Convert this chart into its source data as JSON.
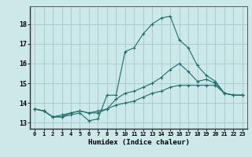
{
  "xlabel": "Humidex (Indice chaleur)",
  "bg_color": "#cce8e8",
  "line_color": "#1a6e6e",
  "grid_color": "#aacccc",
  "xlim": [
    -0.5,
    23.5
  ],
  "ylim": [
    12.7,
    18.9
  ],
  "yticks": [
    13,
    14,
    15,
    16,
    17,
    18
  ],
  "xticks": [
    0,
    1,
    2,
    3,
    4,
    5,
    6,
    7,
    8,
    9,
    10,
    11,
    12,
    13,
    14,
    15,
    16,
    17,
    18,
    19,
    20,
    21,
    22,
    23
  ],
  "line1_x": [
    0,
    1,
    2,
    3,
    4,
    5,
    6,
    7,
    8,
    9,
    10,
    11,
    12,
    13,
    14,
    15,
    16,
    17,
    18,
    19,
    20,
    21,
    22,
    23
  ],
  "line1_y": [
    13.7,
    13.6,
    13.3,
    13.3,
    13.4,
    13.5,
    13.1,
    13.2,
    14.4,
    14.4,
    16.6,
    16.8,
    17.5,
    18.0,
    18.3,
    18.4,
    17.2,
    16.8,
    15.9,
    15.4,
    15.1,
    14.5,
    14.4,
    14.4
  ],
  "line2_x": [
    0,
    1,
    2,
    3,
    4,
    5,
    6,
    7,
    8,
    9,
    10,
    11,
    12,
    13,
    14,
    15,
    16,
    17,
    18,
    19,
    20,
    21,
    22,
    23
  ],
  "line2_y": [
    13.7,
    13.6,
    13.3,
    13.3,
    13.5,
    13.6,
    13.5,
    13.5,
    13.7,
    14.2,
    14.5,
    14.6,
    14.8,
    15.0,
    15.3,
    15.7,
    16.0,
    15.6,
    15.1,
    15.2,
    15.0,
    14.5,
    14.4,
    14.4
  ],
  "line3_x": [
    0,
    1,
    2,
    3,
    4,
    5,
    6,
    7,
    8,
    9,
    10,
    11,
    12,
    13,
    14,
    15,
    16,
    17,
    18,
    19,
    20,
    21,
    22,
    23
  ],
  "line3_y": [
    13.7,
    13.6,
    13.3,
    13.4,
    13.5,
    13.6,
    13.5,
    13.6,
    13.7,
    13.9,
    14.0,
    14.1,
    14.3,
    14.5,
    14.6,
    14.8,
    14.9,
    14.9,
    14.9,
    14.9,
    14.9,
    14.5,
    14.4,
    14.4
  ]
}
